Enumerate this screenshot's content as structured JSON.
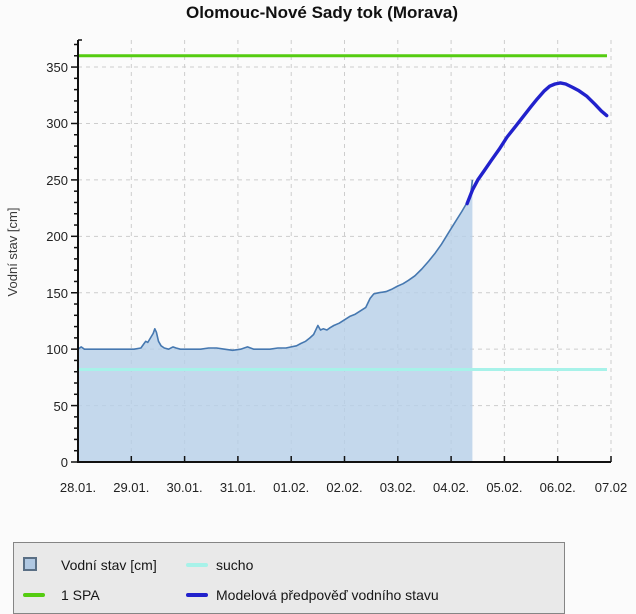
{
  "title": "Olomouc-Nové Sady tok (Morava)",
  "chart_data": {
    "type": "area",
    "title": "Olomouc-Nové Sady tok (Morava)",
    "xlabel": "",
    "ylabel": "Vodní stav [cm]",
    "ylim": [
      0,
      374
    ],
    "y_ticks": [
      0,
      50,
      100,
      150,
      200,
      250,
      300,
      350
    ],
    "y_minor_tick_step": 10,
    "x_days": [
      0,
      1,
      2,
      3,
      4,
      5,
      6,
      7,
      8,
      9,
      10
    ],
    "x_tick_labels": [
      "28.01.",
      "29.01.",
      "30.01.",
      "31.01.",
      "01.02.",
      "02.02.",
      "03.02.",
      "04.02.",
      "05.02.",
      "06.02.",
      "07.02"
    ],
    "grid": "dashed",
    "legend_position": "bottom",
    "thresholds": [
      {
        "name": "1 SPA",
        "value": 360,
        "color": "#55cc11"
      },
      {
        "name": "sucho",
        "value": 82,
        "color": "#a7f2e9"
      }
    ],
    "series": [
      {
        "name": "Vodní stav [cm]",
        "style": "area",
        "x": [
          0,
          0.06,
          0.12,
          0.3,
          0.5,
          0.7,
          0.9,
          1.05,
          1.18,
          1.24,
          1.27,
          1.31,
          1.36,
          1.41,
          1.44,
          1.47,
          1.51,
          1.56,
          1.62,
          1.7,
          1.78,
          1.84,
          1.92,
          2.0,
          2.15,
          2.3,
          2.45,
          2.6,
          2.75,
          2.9,
          3.05,
          3.18,
          3.3,
          3.45,
          3.6,
          3.75,
          3.9,
          4.0,
          4.1,
          4.18,
          4.27,
          4.35,
          4.42,
          4.47,
          4.5,
          4.55,
          4.6,
          4.67,
          4.73,
          4.8,
          4.9,
          5.0,
          5.1,
          5.2,
          5.3,
          5.4,
          5.48,
          5.55,
          5.65,
          5.78,
          5.88,
          6.0,
          6.1,
          6.2,
          6.32,
          6.45,
          6.58,
          6.7,
          6.82,
          6.95,
          7.08,
          7.2,
          7.3,
          7.36,
          7.4
        ],
        "y": [
          100,
          102,
          100,
          100,
          100,
          100,
          100,
          100,
          101,
          105,
          107,
          106,
          110,
          114,
          118,
          115,
          107,
          103,
          101,
          100,
          102,
          101,
          100,
          100,
          100,
          100,
          101,
          101,
          100,
          99,
          100,
          102,
          100,
          100,
          100,
          101,
          101,
          102,
          103,
          105,
          107,
          110,
          113,
          118,
          121,
          117,
          118,
          117,
          119,
          121,
          123,
          126,
          129,
          131,
          134,
          137,
          145,
          149,
          150,
          151,
          153,
          156,
          158,
          161,
          165,
          171,
          178,
          185,
          193,
          203,
          213,
          222,
          230,
          234,
          250
        ]
      },
      {
        "name": "Modelová předpověď vodního stavu",
        "style": "line",
        "x": [
          7.3,
          7.4,
          7.5,
          7.62,
          7.75,
          7.9,
          8.05,
          8.2,
          8.35,
          8.5,
          8.62,
          8.75,
          8.85,
          8.95,
          9.05,
          9.15,
          9.28,
          9.4,
          9.55,
          9.7,
          9.82,
          9.92
        ],
        "y": [
          229,
          241,
          250,
          258,
          267,
          277,
          288,
          297,
          306,
          315,
          322,
          329,
          333,
          335,
          336,
          335,
          332,
          329,
          324,
          317,
          311,
          307
        ]
      }
    ]
  },
  "legend": {
    "items": [
      {
        "label": "Vodní stav [cm]",
        "swatch": "area-square"
      },
      {
        "label": "sucho",
        "swatch": "cyan-line"
      },
      {
        "label": "1 SPA",
        "swatch": "green-line"
      },
      {
        "label": "Modelová předpověď vodního stavu",
        "swatch": "blue-line"
      }
    ]
  },
  "colors": {
    "area_fill": "#b7cfe8",
    "area_line": "#4678b0",
    "forecast_line": "#2121cc",
    "spa1_line": "#55cc11",
    "sucho_line": "#a7f2e9",
    "grid": "#cdcdcd",
    "axis": "#111111",
    "legend_bg": "#e9e9e9",
    "legend_border": "#858585",
    "background": "#fbfbfb"
  }
}
